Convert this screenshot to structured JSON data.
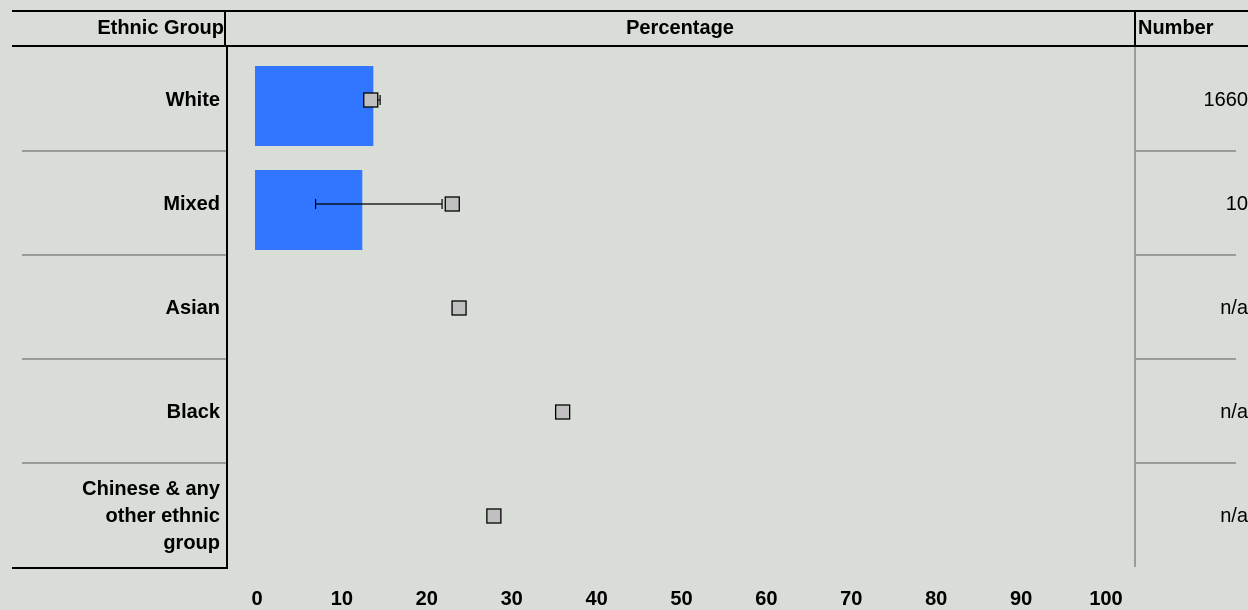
{
  "headers": {
    "ethnic_group": "Ethnic Group",
    "percentage": "Percentage",
    "number": "Number"
  },
  "chart_data": {
    "type": "bar",
    "orientation": "horizontal",
    "categories": [
      "White",
      "Mixed",
      "Asian",
      "Black",
      "Chinese & any other ethnic group"
    ],
    "category_label_lines": [
      [
        "White"
      ],
      [
        "Mixed"
      ],
      [
        "Asian"
      ],
      [
        "Black"
      ],
      [
        "Chinese & any",
        "other ethnic",
        "group"
      ]
    ],
    "values": [
      13.7,
      12.4,
      null,
      null,
      null
    ],
    "error_low": [
      13.0,
      6.9,
      null,
      null,
      null
    ],
    "error_high": [
      14.5,
      21.8,
      null,
      null,
      null
    ],
    "comparison_markers": [
      13.4,
      23.0,
      23.8,
      36.0,
      27.9
    ],
    "numbers": [
      "1660",
      "10",
      "n/a",
      "n/a",
      "n/a"
    ],
    "xlim": [
      0,
      100
    ],
    "xticks": [
      0,
      10,
      20,
      30,
      40,
      50,
      60,
      70,
      80,
      90,
      100
    ],
    "bar_color": "#3176ff",
    "marker_color": "#c0c0c0",
    "background": "#d9ddd8"
  }
}
